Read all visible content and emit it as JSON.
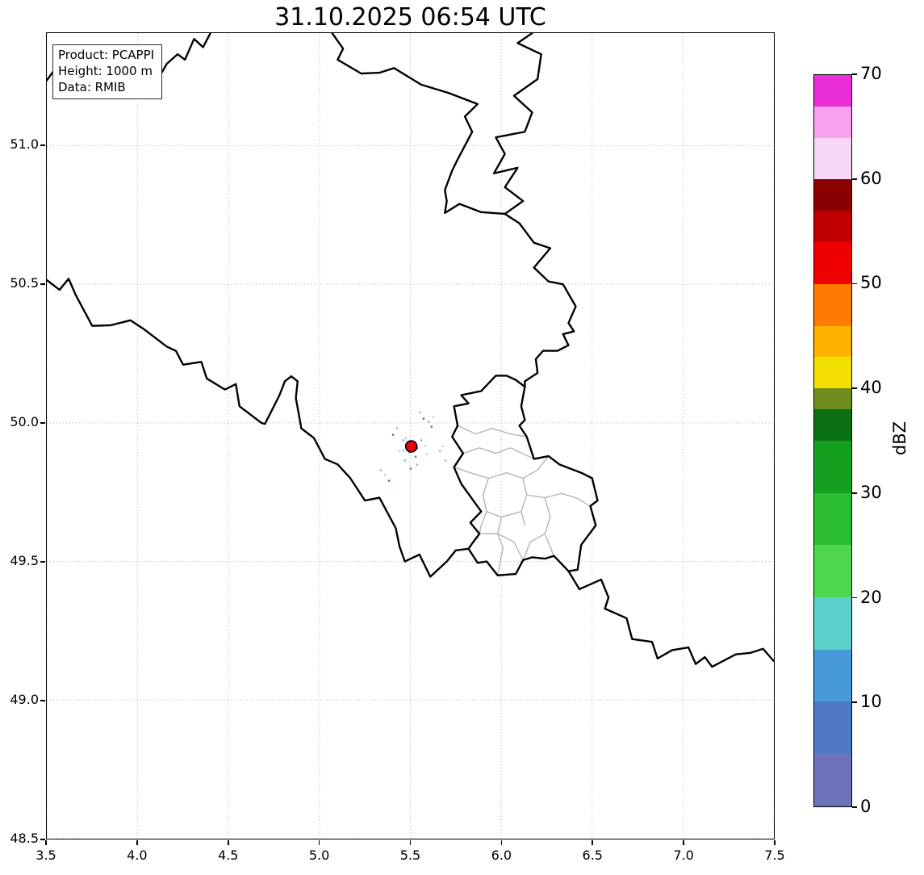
{
  "title": "31.10.2025 06:54 UTC",
  "info_box": {
    "product": "Product: PCAPPI",
    "height": "Height: 1000 m",
    "source": "Data: RMIB"
  },
  "axes": {
    "x_tick_labels": [
      "3.5",
      "4.0",
      "4.5",
      "5.0",
      "5.5",
      "6.0",
      "6.5",
      "7.0",
      "7.5"
    ],
    "x_tick_values": [
      3.5,
      4.0,
      4.5,
      5.0,
      5.5,
      6.0,
      6.5,
      7.0,
      7.5
    ],
    "y_tick_labels": [
      "51.0",
      "50.5",
      "50.0",
      "49.5",
      "49.0",
      "48.5"
    ],
    "y_tick_values": [
      51.0,
      50.5,
      50.0,
      49.5,
      49.0,
      48.5
    ]
  },
  "colorbar": {
    "label": "dBZ",
    "min": 0,
    "max": 70,
    "tick_labels": [
      "70",
      "60",
      "50",
      "40",
      "30",
      "20",
      "10",
      "0"
    ],
    "tick_values": [
      70,
      60,
      50,
      40,
      30,
      20,
      10,
      0
    ],
    "bands": [
      {
        "from": 0,
        "to": 5,
        "color": "#6e72b8"
      },
      {
        "from": 5,
        "to": 10,
        "color": "#4e79c5"
      },
      {
        "from": 10,
        "to": 15,
        "color": "#4899d8"
      },
      {
        "from": 15,
        "to": 20,
        "color": "#5bcfc9"
      },
      {
        "from": 20,
        "to": 25,
        "color": "#4fd64f"
      },
      {
        "from": 25,
        "to": 30,
        "color": "#2abe32"
      },
      {
        "from": 30,
        "to": 35,
        "color": "#149f1f"
      },
      {
        "from": 35,
        "to": 38,
        "color": "#0b7014"
      },
      {
        "from": 38,
        "to": 40,
        "color": "#6f8c1f"
      },
      {
        "from": 40,
        "to": 43,
        "color": "#f0df00"
      },
      {
        "from": 43,
        "to": 46,
        "color": "#ffb300"
      },
      {
        "from": 46,
        "to": 50,
        "color": "#ff7a00"
      },
      {
        "from": 50,
        "to": 54,
        "color": "#f00000"
      },
      {
        "from": 54,
        "to": 57,
        "color": "#c00000"
      },
      {
        "from": 57,
        "to": 60,
        "color": "#8a0000"
      },
      {
        "from": 60,
        "to": 64,
        "color": "#f7d7f5"
      },
      {
        "from": 64,
        "to": 67,
        "color": "#f9a0ee"
      },
      {
        "from": 67,
        "to": 70,
        "color": "#ea2fd9"
      }
    ]
  },
  "map": {
    "extent": {
      "lon_min": 3.5,
      "lon_max": 7.5,
      "lat_min": 48.5,
      "lat_max": 51.406
    },
    "grid_color": "#aaaaaa",
    "border_color": "#000000",
    "district_border_color": "#b4b4b4",
    "station": {
      "lon": 5.505,
      "lat": 49.915,
      "color": "#e8000b",
      "edge": "#000000"
    },
    "echo_colors": [
      "#8fb4e0",
      "#4a6fbf",
      "#b8d4ee"
    ],
    "echoes": [
      [
        5.462,
        49.937,
        0
      ],
      [
        5.484,
        49.916,
        1
      ],
      [
        5.515,
        49.928,
        0
      ],
      [
        5.537,
        49.908,
        1
      ],
      [
        5.493,
        49.893,
        0
      ],
      [
        5.44,
        49.899,
        2
      ],
      [
        5.56,
        49.937,
        0
      ],
      [
        5.582,
        49.916,
        2
      ],
      [
        5.529,
        49.878,
        1
      ],
      [
        5.471,
        49.864,
        0
      ],
      [
        5.573,
        50.015,
        1
      ],
      [
        5.6,
        50.004,
        0
      ],
      [
        5.626,
        50.021,
        2
      ],
      [
        5.551,
        50.038,
        0
      ],
      [
        5.617,
        49.986,
        1
      ],
      [
        5.361,
        49.812,
        2
      ],
      [
        5.338,
        49.829,
        0
      ],
      [
        5.383,
        49.791,
        1
      ],
      [
        5.662,
        49.899,
        0
      ],
      [
        5.679,
        49.916,
        2
      ],
      [
        5.427,
        49.98,
        0
      ],
      [
        5.405,
        49.957,
        1
      ],
      [
        5.693,
        49.864,
        0
      ],
      [
        5.502,
        49.835,
        1
      ],
      [
        5.537,
        49.849,
        0
      ],
      [
        5.591,
        49.887,
        2
      ],
      [
        5.489,
        49.921,
        1
      ],
      [
        5.521,
        49.912,
        1
      ],
      [
        5.507,
        49.93,
        1
      ],
      [
        5.498,
        49.903,
        1
      ],
      [
        5.463,
        49.9,
        0
      ],
      [
        5.476,
        49.945,
        2
      ]
    ],
    "borders": [
      [
        [
          3.5,
          51.235
        ],
        [
          3.56,
          51.29
        ],
        [
          3.64,
          51.27
        ],
        [
          3.72,
          51.275
        ],
        [
          3.79,
          51.24
        ],
        [
          3.9,
          51.245
        ],
        [
          4.0,
          51.25
        ],
        [
          4.05,
          51.215
        ],
        [
          4.12,
          51.25
        ],
        [
          4.16,
          51.295
        ],
        [
          4.22,
          51.33
        ],
        [
          4.26,
          51.31
        ],
        [
          4.31,
          51.385
        ],
        [
          4.36,
          51.355
        ],
        [
          4.4,
          51.406
        ]
      ],
      [
        [
          5.07,
          51.406
        ],
        [
          5.13,
          51.35
        ],
        [
          5.1,
          51.31
        ],
        [
          5.23,
          51.26
        ],
        [
          5.33,
          51.263
        ],
        [
          5.41,
          51.28
        ],
        [
          5.56,
          51.22
        ],
        [
          5.71,
          51.19
        ],
        [
          5.87,
          51.15
        ],
        [
          5.8,
          51.105
        ],
        [
          5.84,
          51.05
        ],
        [
          5.76,
          50.95
        ],
        [
          5.73,
          50.91
        ],
        [
          5.69,
          50.84
        ],
        [
          5.7,
          50.8
        ],
        [
          5.69,
          50.757
        ],
        [
          5.77,
          50.79
        ],
        [
          5.89,
          50.76
        ],
        [
          6.02,
          50.754
        ]
      ],
      [
        [
          6.17,
          51.406
        ],
        [
          6.09,
          51.37
        ],
        [
          6.22,
          51.33
        ],
        [
          6.2,
          51.24
        ],
        [
          6.07,
          51.18
        ],
        [
          6.17,
          51.12
        ],
        [
          6.13,
          51.05
        ],
        [
          5.97,
          51.03
        ],
        [
          6.02,
          50.97
        ],
        [
          5.96,
          50.9
        ],
        [
          6.09,
          50.92
        ],
        [
          6.02,
          50.85
        ],
        [
          6.12,
          50.8
        ],
        [
          6.02,
          50.754
        ]
      ],
      [
        [
          6.02,
          50.754
        ],
        [
          6.1,
          50.72
        ],
        [
          6.18,
          50.65
        ],
        [
          6.27,
          50.63
        ],
        [
          6.18,
          50.56
        ],
        [
          6.26,
          50.51
        ],
        [
          6.34,
          50.5
        ],
        [
          6.41,
          50.42
        ],
        [
          6.37,
          50.36
        ],
        [
          6.4,
          50.33
        ],
        [
          6.34,
          50.32
        ],
        [
          6.37,
          50.28
        ],
        [
          6.31,
          50.26
        ],
        [
          6.23,
          50.26
        ],
        [
          6.19,
          50.23
        ],
        [
          6.2,
          50.18
        ],
        [
          6.13,
          50.15
        ],
        [
          6.13,
          50.13
        ]
      ],
      [
        [
          3.5,
          50.515
        ],
        [
          3.57,
          50.48
        ],
        [
          3.62,
          50.52
        ],
        [
          3.66,
          50.46
        ],
        [
          3.75,
          50.35
        ],
        [
          3.85,
          50.352
        ],
        [
          3.96,
          50.37
        ],
        [
          4.03,
          50.34
        ],
        [
          4.11,
          50.3
        ],
        [
          4.16,
          50.275
        ],
        [
          4.21,
          50.26
        ],
        [
          4.25,
          50.21
        ],
        [
          4.35,
          50.22
        ],
        [
          4.38,
          50.16
        ],
        [
          4.48,
          50.12
        ],
        [
          4.54,
          50.14
        ],
        [
          4.56,
          50.06
        ],
        [
          4.68,
          50.0
        ],
        [
          4.7,
          49.996
        ],
        [
          4.78,
          50.1
        ],
        [
          4.81,
          50.15
        ],
        [
          4.845,
          50.168
        ],
        [
          4.88,
          50.15
        ],
        [
          4.87,
          50.09
        ],
        [
          4.9,
          49.98
        ],
        [
          4.97,
          49.945
        ],
        [
          5.03,
          49.87
        ],
        [
          5.1,
          49.85
        ],
        [
          5.17,
          49.8
        ],
        [
          5.25,
          49.72
        ],
        [
          5.33,
          49.73
        ],
        [
          5.42,
          49.62
        ],
        [
          5.44,
          49.555
        ],
        [
          5.47,
          49.5
        ],
        [
          5.55,
          49.525
        ],
        [
          5.61,
          49.445
        ],
        [
          5.7,
          49.5
        ],
        [
          5.75,
          49.54
        ],
        [
          5.82,
          49.546
        ]
      ],
      [
        [
          6.03,
          50.17
        ],
        [
          6.08,
          50.155
        ],
        [
          6.13,
          50.13
        ],
        [
          6.11,
          50.06
        ],
        [
          6.13,
          50.01
        ],
        [
          6.1,
          49.99
        ],
        [
          6.14,
          49.95
        ],
        [
          6.18,
          49.87
        ],
        [
          6.26,
          49.88
        ],
        [
          6.32,
          49.85
        ],
        [
          6.44,
          49.82
        ],
        [
          6.5,
          49.8
        ],
        [
          6.53,
          49.72
        ],
        [
          6.49,
          49.7
        ],
        [
          6.52,
          49.63
        ],
        [
          6.44,
          49.56
        ],
        [
          6.42,
          49.47
        ],
        [
          6.37,
          49.465
        ],
        [
          6.29,
          49.52
        ],
        [
          6.24,
          49.51
        ],
        [
          6.17,
          49.515
        ],
        [
          6.12,
          49.505
        ],
        [
          6.08,
          49.455
        ],
        [
          5.98,
          49.45
        ],
        [
          5.92,
          49.5
        ],
        [
          5.87,
          49.495
        ],
        [
          5.82,
          49.546
        ],
        [
          5.84,
          49.565
        ],
        [
          5.88,
          49.6
        ],
        [
          5.83,
          49.64
        ],
        [
          5.89,
          49.68
        ],
        [
          5.78,
          49.78
        ],
        [
          5.74,
          49.84
        ],
        [
          5.79,
          49.89
        ],
        [
          5.73,
          49.95
        ],
        [
          5.76,
          49.99
        ],
        [
          5.74,
          50.06
        ],
        [
          5.82,
          50.07
        ],
        [
          5.78,
          50.1
        ],
        [
          5.89,
          50.115
        ],
        [
          5.97,
          50.17
        ],
        [
          6.03,
          50.17
        ]
      ],
      [
        [
          6.37,
          49.465
        ],
        [
          6.43,
          49.4
        ],
        [
          6.55,
          49.435
        ],
        [
          6.59,
          49.37
        ],
        [
          6.57,
          49.33
        ],
        [
          6.69,
          49.295
        ],
        [
          6.72,
          49.22
        ],
        [
          6.83,
          49.21
        ],
        [
          6.86,
          49.15
        ],
        [
          6.94,
          49.18
        ],
        [
          7.03,
          49.19
        ],
        [
          7.07,
          49.13
        ],
        [
          7.12,
          49.155
        ],
        [
          7.16,
          49.12
        ],
        [
          7.29,
          49.165
        ],
        [
          7.37,
          49.17
        ],
        [
          7.44,
          49.185
        ],
        [
          7.5,
          49.14
        ]
      ]
    ],
    "district_borders": [
      [
        [
          5.76,
          49.99
        ],
        [
          5.86,
          49.96
        ],
        [
          5.95,
          49.98
        ],
        [
          6.05,
          49.96
        ],
        [
          6.14,
          49.95
        ]
      ],
      [
        [
          5.79,
          49.89
        ],
        [
          5.88,
          49.91
        ],
        [
          5.97,
          49.89
        ],
        [
          6.05,
          49.91
        ],
        [
          6.18,
          49.87
        ]
      ],
      [
        [
          5.74,
          49.84
        ],
        [
          5.83,
          49.82
        ],
        [
          5.93,
          49.8
        ],
        [
          6.03,
          49.82
        ],
        [
          6.12,
          49.8
        ],
        [
          6.2,
          49.83
        ],
        [
          6.26,
          49.88
        ]
      ],
      [
        [
          5.93,
          49.8
        ],
        [
          5.9,
          49.74
        ],
        [
          5.92,
          49.68
        ],
        [
          5.89,
          49.63
        ],
        [
          5.88,
          49.6
        ]
      ],
      [
        [
          6.12,
          49.8
        ],
        [
          6.14,
          49.74
        ],
        [
          6.11,
          49.68
        ],
        [
          6.13,
          49.63
        ]
      ],
      [
        [
          6.14,
          49.74
        ],
        [
          6.24,
          49.73
        ],
        [
          6.33,
          49.745
        ],
        [
          6.41,
          49.73
        ],
        [
          6.49,
          49.7
        ]
      ],
      [
        [
          5.92,
          49.68
        ],
        [
          6.0,
          49.66
        ],
        [
          6.11,
          49.68
        ]
      ],
      [
        [
          6.0,
          49.66
        ],
        [
          5.98,
          49.6
        ],
        [
          6.01,
          49.55
        ],
        [
          5.98,
          49.45
        ]
      ],
      [
        [
          6.24,
          49.73
        ],
        [
          6.27,
          49.66
        ],
        [
          6.24,
          49.6
        ],
        [
          6.29,
          49.52
        ]
      ],
      [
        [
          6.24,
          49.6
        ],
        [
          6.16,
          49.57
        ],
        [
          6.12,
          49.505
        ]
      ],
      [
        [
          5.98,
          49.6
        ],
        [
          6.07,
          49.57
        ],
        [
          6.12,
          49.505
        ]
      ],
      [
        [
          5.88,
          49.6
        ],
        [
          5.98,
          49.6
        ]
      ]
    ]
  },
  "chart_data": {
    "type": "map",
    "title": "31.10.2025 06:54 UTC",
    "product": "PCAPPI",
    "height_m": 1000,
    "source": "RMIB",
    "lon_range": [
      3.5,
      7.5
    ],
    "lat_range": [
      48.5,
      51.406
    ],
    "grid": true,
    "colorbar": {
      "unit": "dBZ",
      "range": [
        0,
        70
      ],
      "ticks": [
        0,
        10,
        20,
        30,
        40,
        50,
        60,
        70
      ]
    },
    "radar_site": {
      "lon": 5.505,
      "lat": 49.915
    }
  }
}
